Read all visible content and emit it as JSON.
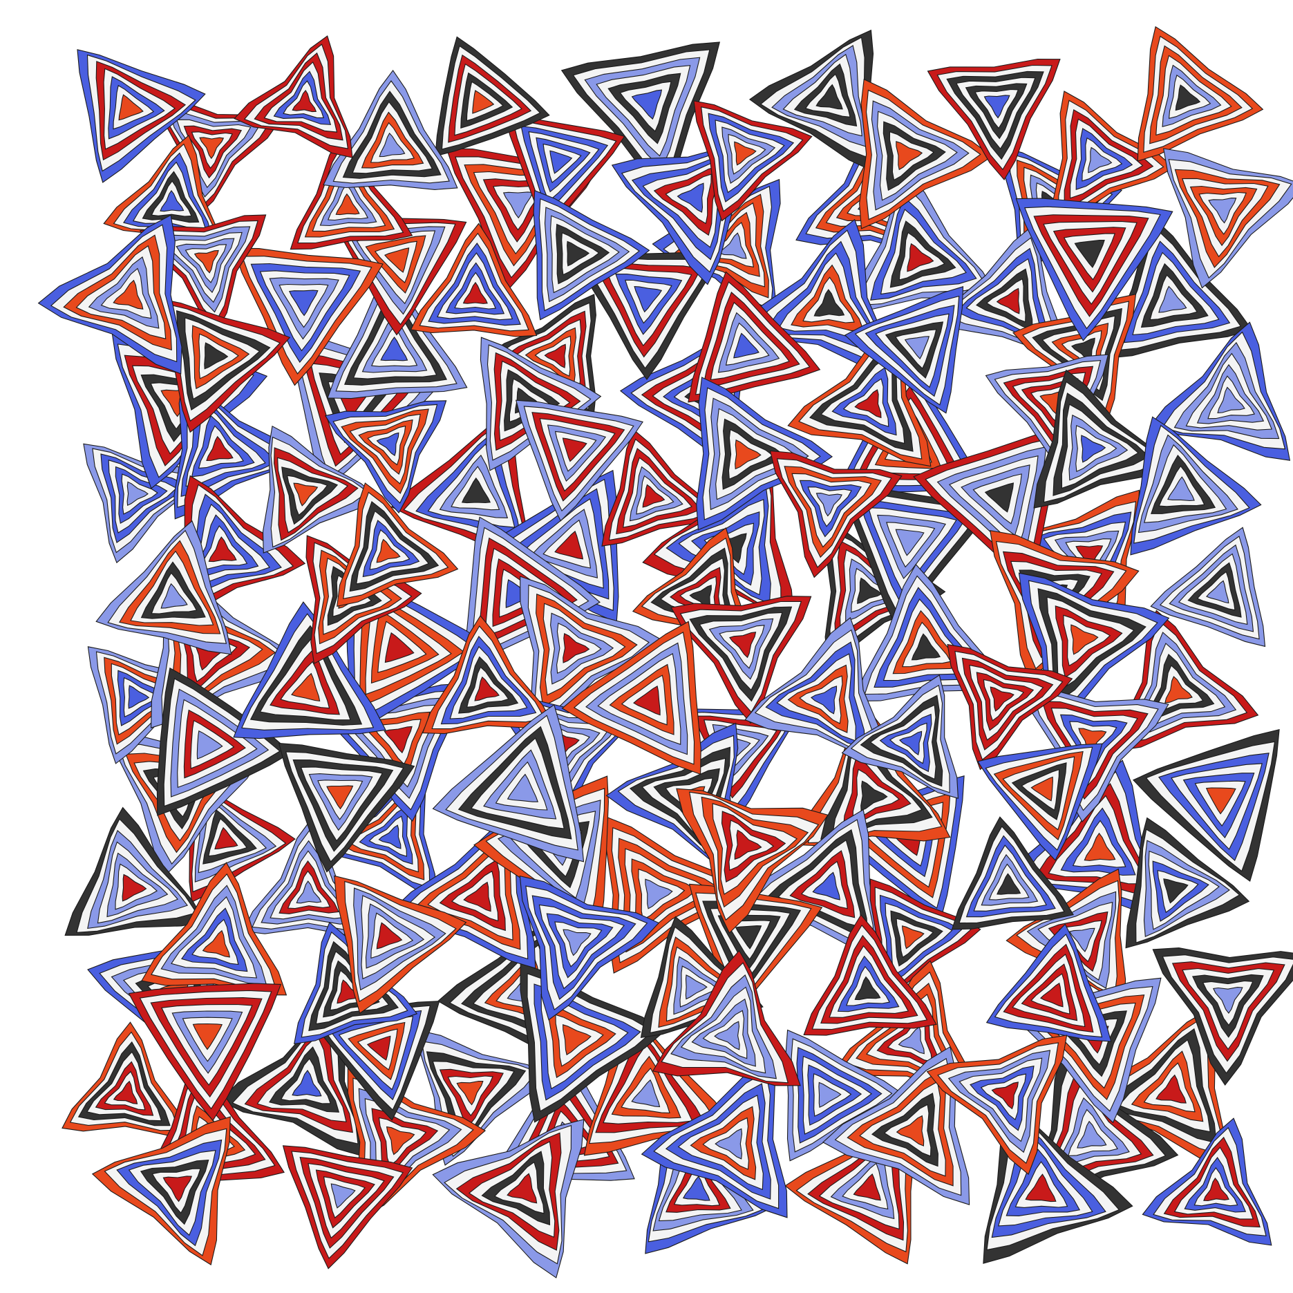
{
  "artwork": {
    "description_visible_text": "",
    "motif": "nested-triangle-spiral",
    "style": "generative geometric pattern",
    "background_color": "#ffffff",
    "outline_color": "#1a1a1a",
    "palette": [
      "#e8491d",
      "#c81a1a",
      "#4a5fe0",
      "#8a99e8",
      "#f4f4f4",
      "#333333"
    ],
    "grid": {
      "rows": 12,
      "columns": 7,
      "rings_per_motif": 7
    }
  }
}
